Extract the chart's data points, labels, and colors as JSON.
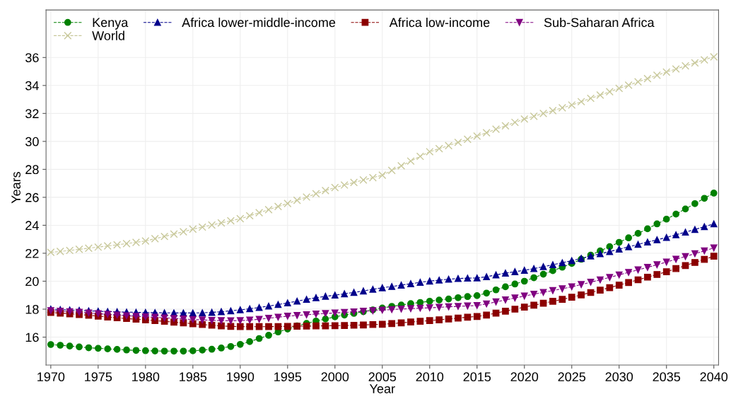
{
  "chart_data": {
    "type": "line",
    "xlabel": "Year",
    "ylabel": "Years",
    "x": [
      1970,
      1971,
      1972,
      1973,
      1974,
      1975,
      1976,
      1977,
      1978,
      1979,
      1980,
      1981,
      1982,
      1983,
      1984,
      1985,
      1986,
      1987,
      1988,
      1989,
      1990,
      1991,
      1992,
      1993,
      1994,
      1995,
      1996,
      1997,
      1998,
      1999,
      2000,
      2001,
      2002,
      2003,
      2004,
      2005,
      2006,
      2007,
      2008,
      2009,
      2010,
      2011,
      2012,
      2013,
      2014,
      2015,
      2016,
      2017,
      2018,
      2019,
      2020,
      2021,
      2022,
      2023,
      2024,
      2025,
      2026,
      2027,
      2028,
      2029,
      2030,
      2031,
      2032,
      2033,
      2034,
      2035,
      2036,
      2037,
      2038,
      2039,
      2040
    ],
    "xlim": [
      1969.5,
      2040.5
    ],
    "xticks": [
      1970,
      1975,
      1980,
      1985,
      1990,
      1995,
      2000,
      2005,
      2010,
      2015,
      2020,
      2025,
      2030,
      2035,
      2040
    ],
    "ylim": [
      14,
      39.4
    ],
    "yticks": [
      16,
      18,
      20,
      22,
      24,
      26,
      28,
      30,
      32,
      34,
      36
    ],
    "grid": true,
    "legend": "top",
    "line_style": "dashed",
    "series": [
      {
        "name": "Kenya",
        "color": "#008000",
        "marker": "circle",
        "values": [
          15.47,
          15.42,
          15.36,
          15.3,
          15.24,
          15.2,
          15.16,
          15.12,
          15.08,
          15.05,
          15.03,
          15.01,
          15.0,
          15.0,
          15.0,
          15.02,
          15.07,
          15.13,
          15.22,
          15.33,
          15.48,
          15.68,
          15.9,
          16.13,
          16.37,
          16.58,
          16.8,
          16.98,
          17.15,
          17.3,
          17.45,
          17.58,
          17.7,
          17.82,
          17.95,
          18.08,
          18.2,
          18.3,
          18.4,
          18.48,
          18.57,
          18.65,
          18.73,
          18.82,
          18.9,
          18.97,
          19.15,
          19.38,
          19.6,
          19.8,
          20.0,
          20.25,
          20.5,
          20.75,
          21.0,
          21.27,
          21.57,
          21.87,
          22.17,
          22.47,
          22.78,
          23.1,
          23.42,
          23.75,
          24.1,
          24.44,
          24.8,
          25.17,
          25.55,
          25.93,
          26.3
        ]
      },
      {
        "name": "Africa lower-middle-income",
        "color": "#00008b",
        "marker": "triangle",
        "values": [
          18.0,
          17.97,
          17.94,
          17.91,
          17.88,
          17.85,
          17.83,
          17.81,
          17.79,
          17.77,
          17.76,
          17.75,
          17.74,
          17.73,
          17.73,
          17.73,
          17.74,
          17.77,
          17.82,
          17.88,
          17.95,
          18.03,
          18.12,
          18.22,
          18.33,
          18.45,
          18.57,
          18.7,
          18.82,
          18.92,
          19.0,
          19.1,
          19.2,
          19.3,
          19.42,
          19.53,
          19.62,
          19.72,
          19.82,
          19.92,
          20.01,
          20.08,
          20.14,
          20.19,
          20.22,
          20.23,
          20.32,
          20.45,
          20.58,
          20.68,
          20.78,
          20.9,
          21.04,
          21.18,
          21.32,
          21.47,
          21.63,
          21.8,
          21.96,
          22.12,
          22.29,
          22.46,
          22.63,
          22.8,
          22.96,
          23.13,
          23.32,
          23.51,
          23.7,
          23.9,
          24.1
        ]
      },
      {
        "name": "Africa low-income",
        "color": "#8b0000",
        "marker": "square",
        "values": [
          17.76,
          17.72,
          17.67,
          17.62,
          17.56,
          17.5,
          17.44,
          17.38,
          17.33,
          17.28,
          17.23,
          17.18,
          17.13,
          17.07,
          17.02,
          16.96,
          16.9,
          16.85,
          16.8,
          16.77,
          16.75,
          16.75,
          16.75,
          16.75,
          16.76,
          16.77,
          16.78,
          16.79,
          16.8,
          16.81,
          16.82,
          16.83,
          16.85,
          16.87,
          16.9,
          16.92,
          16.97,
          17.02,
          17.08,
          17.13,
          17.18,
          17.24,
          17.3,
          17.36,
          17.43,
          17.48,
          17.58,
          17.72,
          17.86,
          18.0,
          18.15,
          18.28,
          18.42,
          18.56,
          18.7,
          18.85,
          19.02,
          19.19,
          19.36,
          19.54,
          19.72,
          19.91,
          20.1,
          20.29,
          20.48,
          20.68,
          20.9,
          21.12,
          21.34,
          21.56,
          21.79
        ]
      },
      {
        "name": "Sub-Saharan Africa",
        "color": "#800080",
        "marker": "triangle_down",
        "values": [
          17.9,
          17.86,
          17.82,
          17.78,
          17.73,
          17.68,
          17.63,
          17.58,
          17.53,
          17.49,
          17.45,
          17.42,
          17.38,
          17.34,
          17.3,
          17.26,
          17.23,
          17.2,
          17.18,
          17.17,
          17.18,
          17.22,
          17.28,
          17.35,
          17.43,
          17.5,
          17.55,
          17.6,
          17.65,
          17.69,
          17.73,
          17.77,
          17.81,
          17.85,
          17.89,
          17.93,
          17.97,
          18.01,
          18.04,
          18.07,
          18.1,
          18.13,
          18.17,
          18.2,
          18.23,
          18.26,
          18.38,
          18.52,
          18.66,
          18.8,
          18.94,
          19.07,
          19.2,
          19.33,
          19.46,
          19.6,
          19.76,
          19.93,
          20.1,
          20.27,
          20.45,
          20.63,
          20.81,
          20.99,
          21.18,
          21.37,
          21.57,
          21.77,
          21.97,
          22.17,
          22.38
        ]
      },
      {
        "name": "World",
        "color": "#c8c89a",
        "marker": "cross",
        "values": [
          22.07,
          22.13,
          22.2,
          22.28,
          22.36,
          22.44,
          22.52,
          22.6,
          22.69,
          22.78,
          22.88,
          23.04,
          23.2,
          23.37,
          23.54,
          23.72,
          23.87,
          24.02,
          24.17,
          24.32,
          24.47,
          24.68,
          24.9,
          25.12,
          25.34,
          25.56,
          25.79,
          26.02,
          26.25,
          26.48,
          26.7,
          26.88,
          27.06,
          27.24,
          27.41,
          27.58,
          27.92,
          28.25,
          28.59,
          28.93,
          29.26,
          29.48,
          29.7,
          29.93,
          30.15,
          30.38,
          30.62,
          30.87,
          31.11,
          31.36,
          31.6,
          31.8,
          32.0,
          32.2,
          32.4,
          32.6,
          32.84,
          33.08,
          33.31,
          33.55,
          33.79,
          34.02,
          34.26,
          34.49,
          34.73,
          34.96,
          35.18,
          35.4,
          35.62,
          35.83,
          36.05
        ]
      }
    ]
  }
}
